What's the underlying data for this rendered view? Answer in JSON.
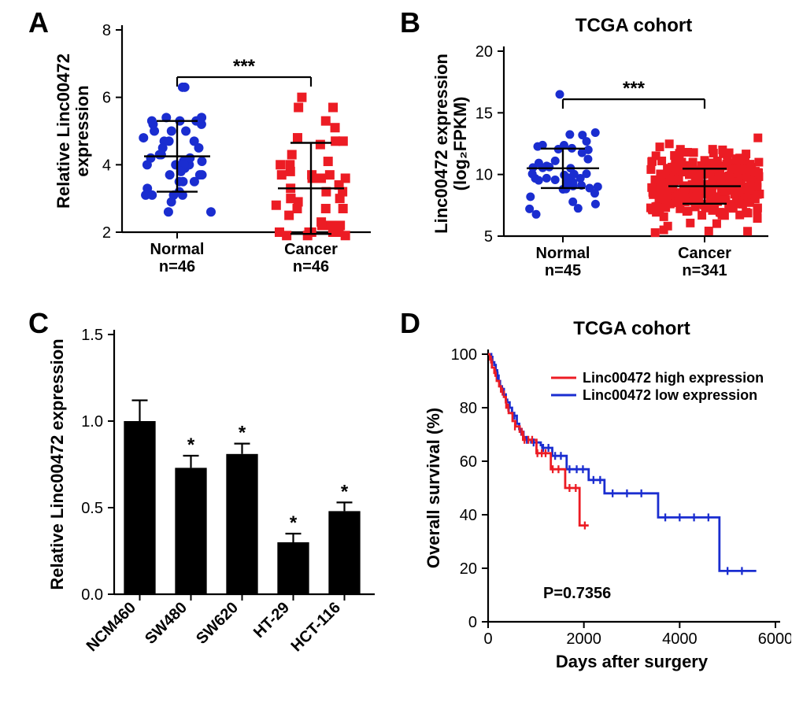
{
  "panel_letter_fontsize": 36,
  "panels": {
    "A": "A",
    "B": "B",
    "C": "C",
    "D": "D"
  },
  "colors": {
    "normal_marker": "#1a2dd0",
    "cancer_marker": "#ec1c24",
    "axis": "#000000",
    "bar_fill": "#000000",
    "km_high": "#ec1c24",
    "km_low": "#1a2dd0",
    "background": "#ffffff"
  },
  "panelA": {
    "type": "scatter",
    "y_axis_title": "Relative Linc00472\nexpression",
    "title_fontsize": 22,
    "tick_fontsize": 20,
    "ylim": [
      2,
      8
    ],
    "ytick_step": 2,
    "groups": [
      {
        "label": "Normal\nn=46",
        "mean": 4.25,
        "sd": 1.05,
        "marker": "circle",
        "color_key": "normal_marker"
      },
      {
        "label": "Cancer\nn=46",
        "mean": 3.3,
        "sd": 1.35,
        "marker": "square",
        "color_key": "cancer_marker"
      }
    ],
    "sig_label": "***",
    "sig_y": 6.6,
    "normal_points": [
      3.5,
      3.9,
      4.1,
      3.7,
      5.3,
      3.3,
      3.2,
      6.3,
      3.1,
      4.0,
      5.2,
      5.0,
      4.0,
      4.2,
      5.2,
      5.0,
      4.3,
      3.7,
      2.6,
      3.5,
      4.2,
      4.0,
      3.1,
      2.9,
      5.4,
      4.5,
      5.3,
      4.7,
      5.0,
      4.3,
      3.1,
      4.7,
      2.6,
      4.5,
      3.1,
      3.5,
      5.4,
      3.8,
      6.3,
      5.4,
      5.3,
      4.1,
      3.7,
      4.7,
      4.8,
      4.0
    ],
    "cancer_points": [
      4.0,
      4.6,
      2.7,
      5.7,
      3.0,
      3.7,
      4.7,
      2.1,
      2.8,
      5.3,
      3.8,
      3.7,
      1.9,
      5.1,
      2.0,
      4.1,
      2.0,
      1.9,
      2.2,
      3.6,
      3.3,
      4.7,
      4.3,
      2.5,
      2.2,
      1.9,
      3.2,
      6.0,
      2.0,
      3.2,
      3.7,
      2.0,
      2.2,
      2.3,
      5.7,
      2.7,
      3.0,
      4.8,
      3.6,
      3.4,
      2.7,
      2.0,
      3.6,
      2.9,
      3.0,
      4.0
    ]
  },
  "panelB": {
    "type": "scatter",
    "title": "TCGA cohort",
    "title_fontsize": 24,
    "y_axis_title": "Linc00472 expression\n(log₂FPKM)",
    "axis_title_fontsize": 22,
    "tick_fontsize": 20,
    "ylim": [
      5,
      20
    ],
    "ytick_step": 5,
    "groups": [
      {
        "label": "Normal\nn=45",
        "mean": 10.5,
        "sd": 1.6,
        "marker": "circle",
        "color_key": "normal_marker"
      },
      {
        "label": "Cancer\nn=341",
        "mean": 9.05,
        "sd": 1.42,
        "marker": "square",
        "color_key": "cancer_marker"
      }
    ],
    "sig_label": "***",
    "sig_y": 16.1
  },
  "panelC": {
    "type": "bar",
    "y_axis_title": "Relative Linc00472 expression",
    "axis_title_fontsize": 22,
    "tick_fontsize": 20,
    "ylim": [
      0.0,
      1.5
    ],
    "ytick_step": 0.5,
    "bar_width": 0.62,
    "categories": [
      "NCM460",
      "SW480",
      "SW620",
      "HT-29",
      "HCT-116"
    ],
    "values": [
      1.0,
      0.73,
      0.81,
      0.3,
      0.48
    ],
    "errors": [
      0.12,
      0.07,
      0.06,
      0.05,
      0.05
    ],
    "sig_marks": [
      "",
      "*",
      "*",
      "*",
      "*"
    ],
    "bar_color": "#000000"
  },
  "panelD": {
    "type": "kaplan-meier",
    "title": "TCGA cohort",
    "title_fontsize": 24,
    "y_axis_title": "Overall survival (%)",
    "x_axis_title": "Days after surgery",
    "axis_title_fontsize": 22,
    "tick_fontsize": 20,
    "ylim": [
      0,
      100
    ],
    "ytick_step": 20,
    "xlim": [
      0,
      6000
    ],
    "xtick_step": 2000,
    "p_label": "P=0.7356",
    "legend": {
      "high": "Linc00472 high expression",
      "low": "Linc00472 low expression"
    },
    "high_curve": [
      [
        0,
        100
      ],
      [
        40,
        98
      ],
      [
        80,
        95
      ],
      [
        130,
        93
      ],
      [
        180,
        90
      ],
      [
        230,
        88
      ],
      [
        270,
        86
      ],
      [
        330,
        84
      ],
      [
        370,
        82
      ],
      [
        380,
        80
      ],
      [
        430,
        78
      ],
      [
        510,
        75
      ],
      [
        570,
        73
      ],
      [
        660,
        71
      ],
      [
        730,
        68
      ],
      [
        740,
        68
      ],
      [
        1000,
        68
      ],
      [
        1010,
        63
      ],
      [
        1050,
        63
      ],
      [
        1300,
        63
      ],
      [
        1310,
        57
      ],
      [
        1600,
        57
      ],
      [
        1610,
        50
      ],
      [
        1900,
        50
      ],
      [
        1910,
        36
      ],
      [
        2100,
        36
      ]
    ],
    "high_censor": [
      [
        60,
        98
      ],
      [
        150,
        93
      ],
      [
        300,
        86
      ],
      [
        420,
        80
      ],
      [
        560,
        73
      ],
      [
        700,
        71
      ],
      [
        760,
        68
      ],
      [
        840,
        68
      ],
      [
        920,
        68
      ],
      [
        1030,
        63
      ],
      [
        1120,
        63
      ],
      [
        1200,
        63
      ],
      [
        1350,
        57
      ],
      [
        1470,
        57
      ],
      [
        1700,
        50
      ],
      [
        1830,
        50
      ],
      [
        2020,
        36
      ]
    ],
    "low_curve": [
      [
        0,
        100
      ],
      [
        50,
        99
      ],
      [
        90,
        97
      ],
      [
        130,
        96
      ],
      [
        160,
        94
      ],
      [
        190,
        92
      ],
      [
        220,
        90
      ],
      [
        250,
        88
      ],
      [
        290,
        87
      ],
      [
        330,
        85
      ],
      [
        370,
        83
      ],
      [
        400,
        82
      ],
      [
        450,
        80
      ],
      [
        500,
        78
      ],
      [
        540,
        77
      ],
      [
        600,
        74
      ],
      [
        650,
        72
      ],
      [
        700,
        71
      ],
      [
        740,
        69
      ],
      [
        780,
        68
      ],
      [
        880,
        68
      ],
      [
        900,
        67
      ],
      [
        1100,
        66
      ],
      [
        1130,
        65
      ],
      [
        1300,
        65
      ],
      [
        1340,
        62
      ],
      [
        1630,
        62
      ],
      [
        1640,
        57
      ],
      [
        2060,
        57
      ],
      [
        2100,
        53
      ],
      [
        2400,
        53
      ],
      [
        2430,
        48
      ],
      [
        3500,
        48
      ],
      [
        3550,
        39
      ],
      [
        4800,
        39
      ],
      [
        4830,
        19
      ],
      [
        5600,
        19
      ]
    ],
    "low_censor": [
      [
        70,
        99
      ],
      [
        200,
        92
      ],
      [
        310,
        86
      ],
      [
        430,
        80
      ],
      [
        550,
        77
      ],
      [
        690,
        71
      ],
      [
        810,
        68
      ],
      [
        950,
        67
      ],
      [
        1150,
        65
      ],
      [
        1260,
        65
      ],
      [
        1400,
        62
      ],
      [
        1520,
        62
      ],
      [
        1700,
        57
      ],
      [
        1850,
        57
      ],
      [
        1980,
        57
      ],
      [
        2200,
        53
      ],
      [
        2340,
        53
      ],
      [
        2600,
        48
      ],
      [
        2900,
        48
      ],
      [
        3200,
        48
      ],
      [
        3700,
        39
      ],
      [
        4000,
        39
      ],
      [
        4300,
        39
      ],
      [
        4600,
        39
      ],
      [
        5000,
        19
      ],
      [
        5300,
        19
      ]
    ]
  }
}
